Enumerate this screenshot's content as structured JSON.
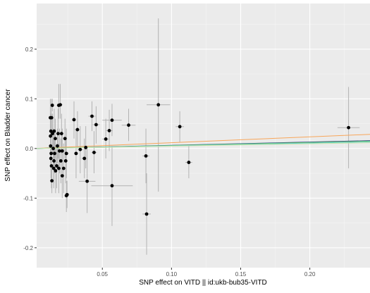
{
  "chart_data": {
    "type": "scatter",
    "title": "",
    "xlabel": "SNP effect on VITD || id:ukb-bub35-VITD",
    "ylabel": "SNP effect on Bladder cancer",
    "xlim": [
      0.0025,
      0.2435
    ],
    "ylim": [
      -0.24,
      0.292
    ],
    "x_ticks": [
      0.05,
      0.1,
      0.15,
      0.2
    ],
    "x_tick_labels": [
      "0.05",
      "0.10",
      "0.15",
      "0.20"
    ],
    "y_ticks": [
      -0.2,
      -0.1,
      0.0,
      0.1,
      0.2
    ],
    "y_tick_labels": [
      "-0.2",
      "-0.1",
      "0.0",
      "0.1",
      "0.2"
    ],
    "grid": true,
    "colors": {
      "panel": "#ebebeb",
      "grid_major": "#ffffff",
      "grid_minor": "#f5f5f5",
      "point": "#000000",
      "errorbar": "#b3b3b3"
    },
    "points": [
      {
        "x": 0.0138,
        "y": 0.087,
        "ylo": 0.075,
        "yhi": 0.1,
        "xlo": 0.013,
        "xhi": 0.0146
      },
      {
        "x": 0.0185,
        "y": 0.087,
        "ylo": 0.06,
        "yhi": 0.13,
        "xlo": 0.017,
        "xhi": 0.02
      },
      {
        "x": 0.0196,
        "y": 0.088,
        "ylo": 0.06,
        "yhi": 0.13,
        "xlo": 0.018,
        "xhi": 0.0212
      },
      {
        "x": 0.0124,
        "y": 0.062,
        "ylo": 0.03,
        "yhi": 0.1,
        "xlo": 0.0116,
        "xhi": 0.0132
      },
      {
        "x": 0.0133,
        "y": 0.062,
        "ylo": 0.03,
        "yhi": 0.1,
        "xlo": 0.0125,
        "xhi": 0.0141
      },
      {
        "x": 0.0128,
        "y": 0.035,
        "ylo": 0.0,
        "yhi": 0.07,
        "xlo": 0.012,
        "xhi": 0.0136
      },
      {
        "x": 0.014,
        "y": 0.03,
        "ylo": -0.01,
        "yhi": 0.07,
        "xlo": 0.013,
        "xhi": 0.015
      },
      {
        "x": 0.0152,
        "y": 0.035,
        "ylo": -0.01,
        "yhi": 0.08,
        "xlo": 0.0142,
        "xhi": 0.0162
      },
      {
        "x": 0.018,
        "y": 0.03,
        "ylo": -0.02,
        "yhi": 0.08,
        "xlo": 0.0168,
        "xhi": 0.0192
      },
      {
        "x": 0.0205,
        "y": 0.03,
        "ylo": -0.01,
        "yhi": 0.07,
        "xlo": 0.019,
        "xhi": 0.022
      },
      {
        "x": 0.0125,
        "y": 0.025,
        "ylo": -0.01,
        "yhi": 0.06,
        "xlo": 0.0117,
        "xhi": 0.0133
      },
      {
        "x": 0.016,
        "y": 0.02,
        "ylo": -0.02,
        "yhi": 0.06,
        "xlo": 0.015,
        "xhi": 0.017
      },
      {
        "x": 0.023,
        "y": 0.02,
        "ylo": -0.02,
        "yhi": 0.06,
        "xlo": 0.0215,
        "xhi": 0.0245
      },
      {
        "x": 0.0126,
        "y": 0.005,
        "ylo": -0.03,
        "yhi": 0.04,
        "xlo": 0.0118,
        "xhi": 0.0134
      },
      {
        "x": 0.0145,
        "y": 0.0,
        "ylo": -0.04,
        "yhi": 0.04,
        "xlo": 0.0135,
        "xhi": 0.0155
      },
      {
        "x": 0.0175,
        "y": 0.005,
        "ylo": -0.03,
        "yhi": 0.04,
        "xlo": 0.0163,
        "xhi": 0.0187
      },
      {
        "x": 0.021,
        "y": -0.005,
        "ylo": -0.05,
        "yhi": 0.04,
        "xlo": 0.0195,
        "xhi": 0.0225
      },
      {
        "x": 0.013,
        "y": -0.01,
        "ylo": -0.05,
        "yhi": 0.03,
        "xlo": 0.0122,
        "xhi": 0.0138
      },
      {
        "x": 0.0155,
        "y": -0.01,
        "ylo": -0.05,
        "yhi": 0.03,
        "xlo": 0.0145,
        "xhi": 0.0165
      },
      {
        "x": 0.019,
        "y": -0.005,
        "ylo": -0.05,
        "yhi": 0.04,
        "xlo": 0.0177,
        "xhi": 0.0203
      },
      {
        "x": 0.024,
        "y": -0.01,
        "ylo": -0.06,
        "yhi": 0.04,
        "xlo": 0.0225,
        "xhi": 0.0255
      },
      {
        "x": 0.0128,
        "y": -0.02,
        "ylo": -0.06,
        "yhi": 0.02,
        "xlo": 0.012,
        "xhi": 0.0136
      },
      {
        "x": 0.015,
        "y": -0.025,
        "ylo": -0.07,
        "yhi": 0.02,
        "xlo": 0.014,
        "xhi": 0.016
      },
      {
        "x": 0.02,
        "y": -0.025,
        "ylo": -0.07,
        "yhi": 0.02,
        "xlo": 0.0187,
        "xhi": 0.0213
      },
      {
        "x": 0.0235,
        "y": -0.025,
        "ylo": -0.07,
        "yhi": 0.02,
        "xlo": 0.022,
        "xhi": 0.025
      },
      {
        "x": 0.0132,
        "y": -0.035,
        "ylo": -0.08,
        "yhi": 0.01,
        "xlo": 0.0124,
        "xhi": 0.014
      },
      {
        "x": 0.0148,
        "y": -0.04,
        "ylo": -0.08,
        "yhi": 0.0,
        "xlo": 0.0138,
        "xhi": 0.0158
      },
      {
        "x": 0.017,
        "y": -0.035,
        "ylo": -0.08,
        "yhi": 0.01,
        "xlo": 0.0158,
        "xhi": 0.0182
      },
      {
        "x": 0.0185,
        "y": -0.04,
        "ylo": -0.09,
        "yhi": 0.01,
        "xlo": 0.0172,
        "xhi": 0.0198
      },
      {
        "x": 0.022,
        "y": -0.04,
        "ylo": -0.09,
        "yhi": 0.01,
        "xlo": 0.0205,
        "xhi": 0.0235
      },
      {
        "x": 0.0162,
        "y": -0.045,
        "ylo": -0.09,
        "yhi": 0.0,
        "xlo": 0.015,
        "xhi": 0.0174
      },
      {
        "x": 0.021,
        "y": -0.055,
        "ylo": -0.1,
        "yhi": -0.01,
        "xlo": 0.0195,
        "xhi": 0.0225
      },
      {
        "x": 0.0135,
        "y": -0.065,
        "ylo": -0.09,
        "yhi": -0.04,
        "xlo": 0.0127,
        "xhi": 0.0143
      },
      {
        "x": 0.024,
        "y": -0.095,
        "ylo": -0.128,
        "yhi": -0.065,
        "xlo": 0.0225,
        "xhi": 0.0255
      },
      {
        "x": 0.0245,
        "y": -0.093,
        "ylo": -0.12,
        "yhi": -0.065,
        "xlo": 0.023,
        "xhi": 0.026
      },
      {
        "x": 0.0295,
        "y": 0.058,
        "ylo": 0.02,
        "yhi": 0.095,
        "xlo": 0.028,
        "xhi": 0.031
      },
      {
        "x": 0.032,
        "y": 0.038,
        "ylo": 0.0,
        "yhi": 0.075,
        "xlo": 0.03,
        "xhi": 0.034
      },
      {
        "x": 0.031,
        "y": -0.01,
        "ylo": -0.06,
        "yhi": 0.04,
        "xlo": 0.0295,
        "xhi": 0.0325
      },
      {
        "x": 0.034,
        "y": -0.002,
        "ylo": -0.05,
        "yhi": 0.045,
        "xlo": 0.032,
        "xhi": 0.036
      },
      {
        "x": 0.038,
        "y": 0.002,
        "ylo": -0.04,
        "yhi": 0.045,
        "xlo": 0.036,
        "xhi": 0.04
      },
      {
        "x": 0.037,
        "y": -0.02,
        "ylo": -0.06,
        "yhi": 0.02,
        "xlo": 0.035,
        "xhi": 0.039
      },
      {
        "x": 0.039,
        "y": -0.066,
        "ylo": -0.13,
        "yhi": 0.0,
        "xlo": 0.033,
        "xhi": 0.045
      },
      {
        "x": 0.044,
        "y": -0.008,
        "ylo": -0.05,
        "yhi": 0.035,
        "xlo": 0.042,
        "xhi": 0.046
      },
      {
        "x": 0.0425,
        "y": 0.065,
        "ylo": 0.035,
        "yhi": 0.095,
        "xlo": 0.04,
        "xhi": 0.045
      },
      {
        "x": 0.0455,
        "y": 0.048,
        "ylo": 0.01,
        "yhi": 0.085,
        "xlo": 0.043,
        "xhi": 0.048
      },
      {
        "x": 0.0525,
        "y": 0.019,
        "ylo": -0.02,
        "yhi": 0.06,
        "xlo": 0.05,
        "xhi": 0.055
      },
      {
        "x": 0.055,
        "y": 0.036,
        "ylo": -0.005,
        "yhi": 0.078,
        "xlo": 0.0525,
        "xhi": 0.0575
      },
      {
        "x": 0.057,
        "y": 0.057,
        "ylo": 0.025,
        "yhi": 0.09,
        "xlo": 0.05,
        "xhi": 0.064
      },
      {
        "x": 0.057,
        "y": -0.075,
        "ylo": -0.156,
        "yhi": 0.005,
        "xlo": 0.042,
        "xhi": 0.072
      },
      {
        "x": 0.069,
        "y": 0.047,
        "ylo": 0.015,
        "yhi": 0.08,
        "xlo": 0.064,
        "xhi": 0.074
      },
      {
        "x": 0.0815,
        "y": -0.015,
        "ylo": -0.07,
        "yhi": 0.04,
        "xlo": 0.079,
        "xhi": 0.084
      },
      {
        "x": 0.082,
        "y": -0.132,
        "ylo": -0.214,
        "yhi": -0.05,
        "xlo": 0.079,
        "xhi": 0.085
      },
      {
        "x": 0.0905,
        "y": 0.088,
        "ylo": -0.087,
        "yhi": 0.262,
        "xlo": 0.082,
        "xhi": 0.099
      },
      {
        "x": 0.106,
        "y": 0.044,
        "ylo": 0.013,
        "yhi": 0.075,
        "xlo": 0.103,
        "xhi": 0.109
      },
      {
        "x": 0.1125,
        "y": -0.028,
        "ylo": -0.06,
        "yhi": 0.005,
        "xlo": 0.11,
        "xhi": 0.115
      },
      {
        "x": 0.228,
        "y": 0.042,
        "ylo": -0.04,
        "yhi": 0.124,
        "xlo": 0.22,
        "xhi": 0.236
      }
    ],
    "lines": [
      {
        "slope": 0.117,
        "intercept": 0.0,
        "color": "#F8A65A"
      },
      {
        "slope": 0.065,
        "intercept": 0.0,
        "color": "#2C3E8F"
      },
      {
        "slope": 0.061,
        "intercept": 0.0,
        "color": "#6DBE5C"
      },
      {
        "slope": 0.055,
        "intercept": 0.0,
        "color": "#5FD0D6"
      },
      {
        "slope": 0.048,
        "intercept": 0.0,
        "color": "#C9E3A5"
      }
    ]
  }
}
